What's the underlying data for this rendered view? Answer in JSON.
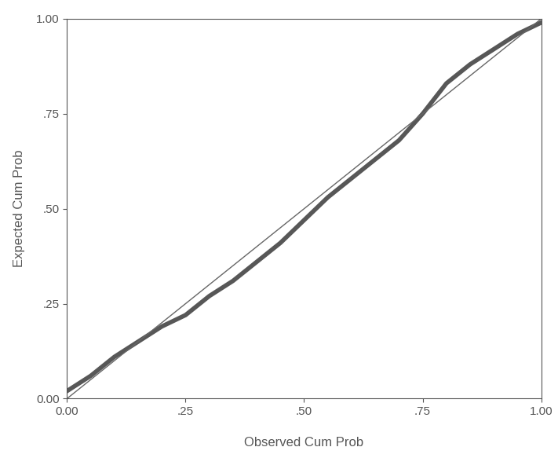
{
  "chart_data": {
    "type": "line",
    "x_label": "Observed Cum Prob",
    "y_label": "Expected Cum Prob",
    "xlim": [
      0,
      1
    ],
    "ylim": [
      0,
      1
    ],
    "xticks": [
      {
        "value": 0,
        "label": "0.00"
      },
      {
        "value": 0.25,
        "label": ".25"
      },
      {
        "value": 0.5,
        "label": ".50"
      },
      {
        "value": 0.75,
        "label": ".75"
      },
      {
        "value": 1,
        "label": "1.00"
      }
    ],
    "yticks": [
      {
        "value": 0,
        "label": "0.00"
      },
      {
        "value": 0.25,
        "label": ".25"
      },
      {
        "value": 0.5,
        "label": ".50"
      },
      {
        "value": 0.75,
        "label": ".75"
      },
      {
        "value": 1,
        "label": "1.00"
      }
    ],
    "grid": false,
    "series": [
      {
        "color": "#3a3a3a",
        "line_style": "solid",
        "x": [
          0,
          0.05,
          0.1,
          0.15,
          0.2,
          0.25,
          0.3,
          0.35,
          0.4,
          0.45,
          0.5,
          0.55,
          0.6,
          0.65,
          0.7,
          0.75,
          0.8,
          0.85,
          0.9,
          0.95,
          1.0
        ],
        "values": [
          0.02,
          0.06,
          0.11,
          0.15,
          0.19,
          0.22,
          0.27,
          0.31,
          0.36,
          0.41,
          0.47,
          0.53,
          0.58,
          0.63,
          0.68,
          0.75,
          0.83,
          0.88,
          0.92,
          0.96,
          0.99
        ]
      },
      {
        "color": "#666666",
        "line_style": "solid",
        "x": [
          0,
          1
        ],
        "values": [
          0,
          1
        ]
      }
    ]
  }
}
